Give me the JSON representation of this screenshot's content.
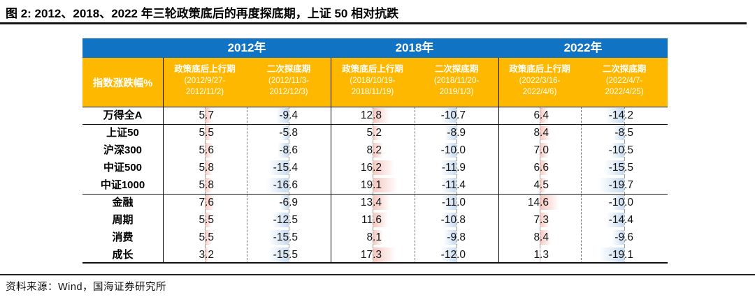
{
  "title": "图 2:  2012、2018、2022 年三轮政策底后的再度探底期，上证 50 相对抗跌",
  "source": "资料来源：Wind，国海证券研究所",
  "colors": {
    "header_blue": "#1173C4",
    "header_yellow": "#FFB800",
    "bar_positive": "#F4C5BD",
    "bar_negative": "#C7DBF0"
  },
  "table": {
    "corner_label": "指数涨跌幅%",
    "year_groups": [
      {
        "label": "2012年",
        "columns": [
          {
            "name": "政策底后上行期",
            "dates": [
              "(2012/9/27-",
              "2012/11/2)"
            ]
          },
          {
            "name": "二次探底期",
            "dates": [
              "(2012/11/3-",
              "2012/12/3)"
            ]
          }
        ]
      },
      {
        "label": "2018年",
        "columns": [
          {
            "name": "政策底后上行期",
            "dates": [
              "(2018/10/19-",
              "2018/11/19)"
            ]
          },
          {
            "name": "二次探底期",
            "dates": [
              "(2018/11/20-",
              "2019/1/3)"
            ]
          }
        ]
      },
      {
        "label": "2022年",
        "columns": [
          {
            "name": "政策底后上行期",
            "dates": [
              "(2022/3/16-",
              "2022/4/6)"
            ]
          },
          {
            "name": "二次探底期",
            "dates": [
              "(2022/4/7-",
              "2022/4/25)"
            ]
          }
        ]
      }
    ],
    "rows": [
      {
        "label": "万得全A",
        "values": [
          "5.7",
          "-9.4",
          "12.8",
          "-10.7",
          "6.4",
          "-14.2"
        ]
      },
      {
        "label": "上证50",
        "values": [
          "5.5",
          "-5.8",
          "5.2",
          "-8.9",
          "8.4",
          "-8.5"
        ]
      },
      {
        "label": "沪深300",
        "values": [
          "5.6",
          "-8.6",
          "8.2",
          "-10.0",
          "7.0",
          "-10.5"
        ]
      },
      {
        "label": "中证500",
        "values": [
          "5.8",
          "-15.4",
          "16.2",
          "-11.9",
          "6.6",
          "-15.5"
        ]
      },
      {
        "label": "中证1000",
        "values": [
          "5.8",
          "-16.6",
          "19.1",
          "-11.4",
          "4.5",
          "-19.7"
        ]
      },
      {
        "label": "金融",
        "values": [
          "7.6",
          "-6.9",
          "13.4",
          "-11.0",
          "14.6",
          "-10.0"
        ]
      },
      {
        "label": "周期",
        "values": [
          "5.5",
          "-12.5",
          "11.6",
          "-10.8",
          "7.3",
          "-14.4"
        ]
      },
      {
        "label": "消费",
        "values": [
          "5.5",
          "-15.5",
          "8.1",
          "-9.8",
          "8.4",
          "-9.6"
        ]
      },
      {
        "label": "成长",
        "values": [
          "3.2",
          "-15.5",
          "17.3",
          "-12.0",
          "1.3",
          "-19.1"
        ]
      }
    ]
  }
}
